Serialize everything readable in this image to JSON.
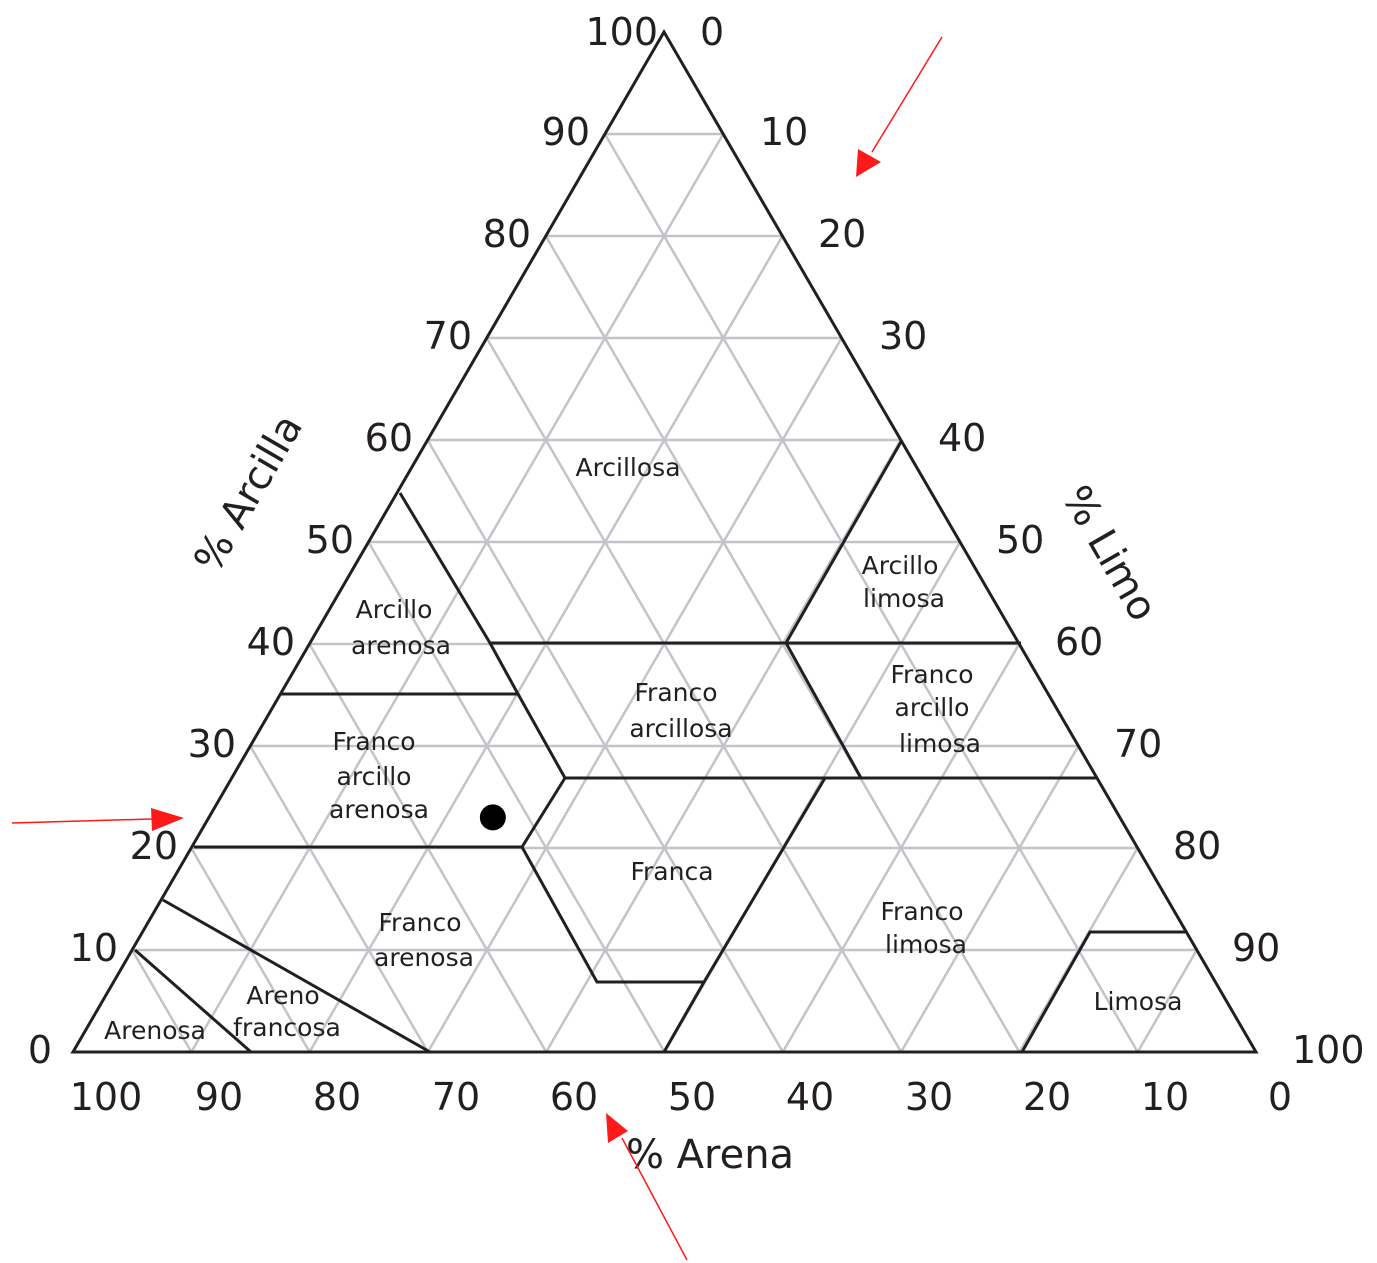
{
  "diagram": {
    "axis_titles": {
      "clay": "% Arcilla",
      "silt": "% Limo",
      "sand": "% Arena"
    },
    "clay_ticks": [
      "0",
      "10",
      "20",
      "30",
      "40",
      "50",
      "60",
      "70",
      "80",
      "90",
      "100"
    ],
    "silt_ticks": [
      "0",
      "10",
      "20",
      "30",
      "40",
      "50",
      "60",
      "70",
      "80",
      "90",
      "100"
    ],
    "sand_ticks": [
      "100",
      "90",
      "80",
      "70",
      "60",
      "50",
      "40",
      "30",
      "20",
      "10",
      "0"
    ],
    "regions": {
      "arcillosa": [
        "Arcillosa"
      ],
      "arcillo_limosa": [
        "Arcillo",
        "limosa"
      ],
      "arcillo_arenosa": [
        "Arcillo",
        "arenosa"
      ],
      "franco_arcillosa": [
        "Franco",
        "arcillosa"
      ],
      "franco_arcillo_limosa": [
        "Franco",
        "arcillo",
        "limosa"
      ],
      "franco_arcillo_arenosa": [
        "Franco",
        "arcillo",
        "arenosa"
      ],
      "franca": [
        "Franca"
      ],
      "franco_limosa": [
        "Franco",
        "limosa"
      ],
      "franco_arenosa": [
        "Franco",
        "arenosa"
      ],
      "areno_francosa": [
        "Areno",
        "francosa"
      ],
      "arenosa": [
        "Arenosa"
      ],
      "limosa": [
        "Limosa"
      ]
    },
    "sample_point": {
      "clay": 23,
      "silt": 24,
      "sand": 53
    },
    "colors": {
      "grid": "#c3c3c9",
      "outline": "#231f20",
      "arrows": "#ff1a1a",
      "point": "#000000"
    }
  }
}
